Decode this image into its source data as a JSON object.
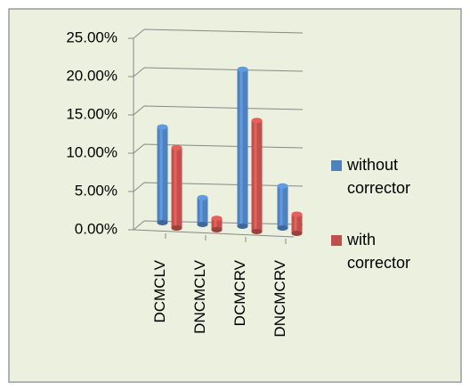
{
  "chart_data": {
    "type": "bar3d",
    "categories": [
      "DCMCLV",
      "DNCMCLV",
      "DCMCRV",
      "DNCMCRV"
    ],
    "series": [
      {
        "name": "without corrector",
        "color": "#4f81bd",
        "values": [
          12.5,
          3.5,
          20.5,
          5.5
        ]
      },
      {
        "name": "with corrector",
        "color": "#c0504d",
        "values": [
          10.5,
          1.5,
          14.5,
          2.5
        ]
      }
    ],
    "ylim": [
      0,
      25
    ],
    "yticks": [
      {
        "value": 0,
        "label": "0.00%"
      },
      {
        "value": 5,
        "label": "5.00%"
      },
      {
        "value": 10,
        "label": "10.00%"
      },
      {
        "value": 15,
        "label": "15.00%"
      },
      {
        "value": 20,
        "label": "20.00%"
      },
      {
        "value": 25,
        "label": "25.00%"
      }
    ],
    "grid": true
  }
}
